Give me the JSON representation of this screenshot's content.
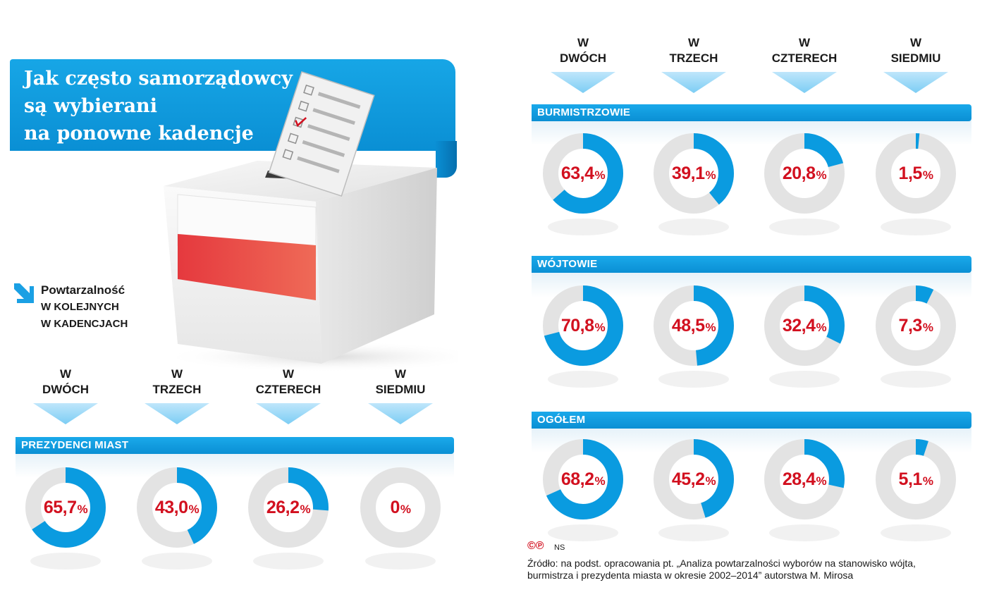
{
  "title": {
    "lines": [
      "Jak często samorządowcy",
      "są wybierani",
      "na ponowne kadencje"
    ]
  },
  "legend": {
    "lines": [
      "Powtarzalność",
      "w kolejnych",
      "w kadencjach"
    ]
  },
  "columns": [
    {
      "w": "W",
      "label": "DWÓCH"
    },
    {
      "w": "W",
      "label": "TRZECH"
    },
    {
      "w": "W",
      "label": "CZTERECH"
    },
    {
      "w": "W",
      "label": "SIEDMIU"
    }
  ],
  "colors": {
    "accent_blue": "#0a9be0",
    "ring_grey": "#e3e3e3",
    "value_red": "#d2101f",
    "flag_red": "#e03a3e"
  },
  "icons": [
    "ballot-box-icon",
    "ballot-paper-icon",
    "polish-flag-icon",
    "down-right-arrow-icon",
    "down-triangle-icon"
  ],
  "chart_data": [
    {
      "type": "pie",
      "title": "PREZYDENCI MIAST",
      "categories": [
        "W DWÓCH",
        "W TRZECH",
        "W CZTERECH",
        "W SIEDMIU"
      ],
      "values": [
        65.7,
        43.0,
        26.2,
        0
      ],
      "labels": [
        "65,7",
        "43,0",
        "26,2",
        "0"
      ],
      "unit": "%"
    },
    {
      "type": "pie",
      "title": "BURMISTRZOWIE",
      "categories": [
        "W DWÓCH",
        "W TRZECH",
        "W CZTERECH",
        "W SIEDMIU"
      ],
      "values": [
        63.4,
        39.1,
        20.8,
        1.5
      ],
      "labels": [
        "63,4",
        "39,1",
        "20,8",
        "1,5"
      ],
      "unit": "%"
    },
    {
      "type": "pie",
      "title": "WÓJTOWIE",
      "categories": [
        "W DWÓCH",
        "W TRZECH",
        "W CZTERECH",
        "W SIEDMIU"
      ],
      "values": [
        70.8,
        48.5,
        32.4,
        7.3
      ],
      "labels": [
        "70,8",
        "48,5",
        "32,4",
        "7,3"
      ],
      "unit": "%"
    },
    {
      "type": "pie",
      "title": "OGÓŁEM",
      "categories": [
        "W DWÓCH",
        "W TRZECH",
        "W CZTERECH",
        "W SIEDMIU"
      ],
      "values": [
        68.2,
        45.2,
        28.4,
        5.1
      ],
      "labels": [
        "68,2",
        "45,2",
        "28,4",
        "5,1"
      ],
      "unit": "%"
    }
  ],
  "credit": {
    "mark": "©℗",
    "author": "NS"
  },
  "source": {
    "line1": "Źródło: na podst. opracowania pt. „Analiza powtarzalności wyborów na stanowisko wójta,",
    "line2": "burmistrza i prezydenta miasta w okresie 2002–2014” autorstwa M. Mirosa"
  }
}
